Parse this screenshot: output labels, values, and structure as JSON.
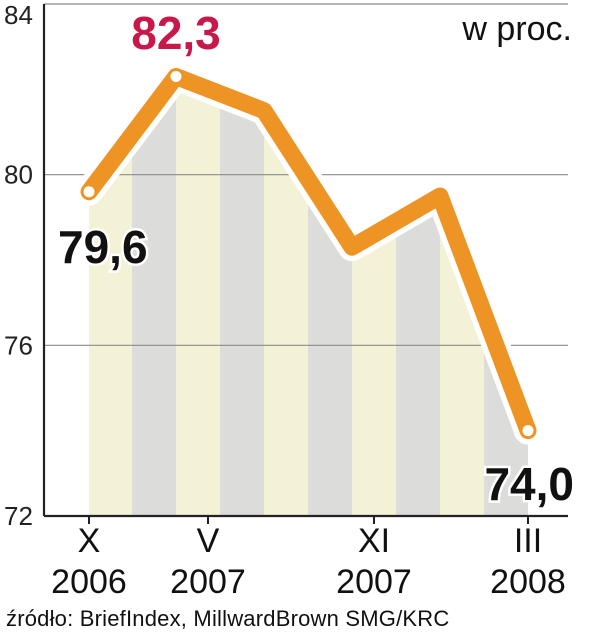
{
  "chart_data": {
    "type": "line",
    "unit_label": "w proc.",
    "yticks": [
      72,
      76,
      80,
      84
    ],
    "ylim": [
      72,
      84
    ],
    "x_tick_labels": [
      {
        "line1": "X",
        "line2": "2006"
      },
      {
        "line1": "V",
        "line2": "2007"
      },
      {
        "line1": "XI",
        "line2": "2007"
      },
      {
        "line1": "III",
        "line2": "2008"
      }
    ],
    "series": [
      {
        "points": [
          {
            "y": 79.6,
            "label": "79,6"
          },
          {
            "y": 82.3,
            "label": "82,3"
          },
          {
            "y": 81.5,
            "label": ""
          },
          {
            "y": 78.3,
            "label": ""
          },
          {
            "y": 79.5,
            "label": ""
          },
          {
            "y": 74.0,
            "label": "74,0"
          }
        ]
      }
    ],
    "colors": {
      "line": "#EE9424",
      "highlight_label": "#C8174A",
      "bar_light": "#F3F1D6",
      "bar_gray": "#DCDCDA",
      "grid": "#8C8C8C"
    }
  },
  "source": "źródło: BriefIndex, MillwardBrown SMG/KRC"
}
